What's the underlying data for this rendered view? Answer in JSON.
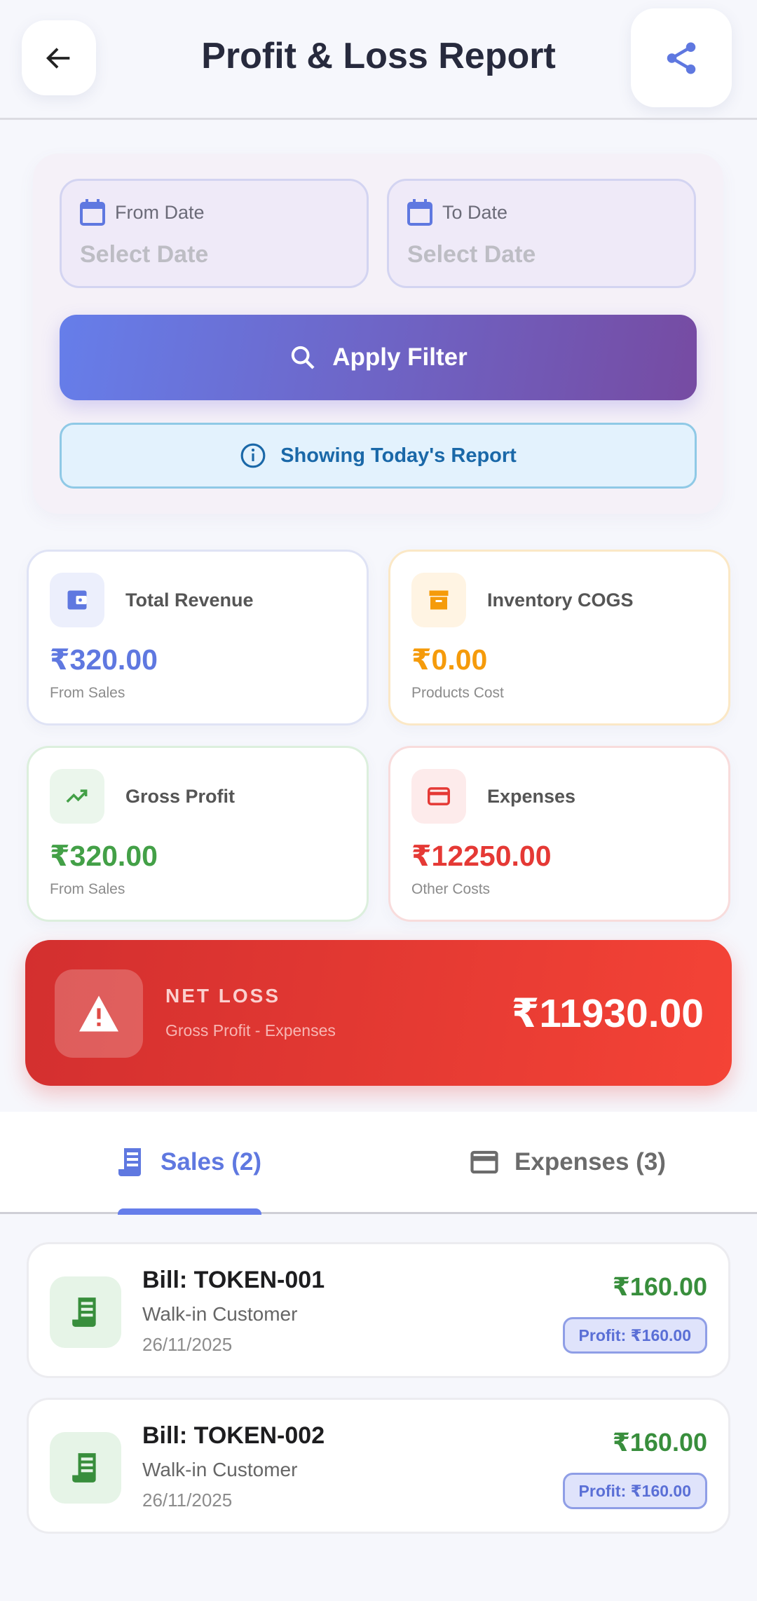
{
  "header": {
    "title": "Profit & Loss Report",
    "back_icon": "arrow-left-icon",
    "share_icon": "share-icon"
  },
  "filter": {
    "from": {
      "label": "From Date",
      "value": "Select Date"
    },
    "to": {
      "label": "To Date",
      "value": "Select Date"
    },
    "apply_label": "Apply Filter",
    "info": "Showing Today's Report"
  },
  "stats": [
    {
      "label": "Total Revenue",
      "value": "₹320.00",
      "sub": "From Sales",
      "color": "#5f78e0",
      "icon": "wallet-icon"
    },
    {
      "label": "Inventory COGS",
      "value": "₹0.00",
      "sub": "Products Cost",
      "color": "#f59b0b",
      "icon": "archive-box-icon"
    },
    {
      "label": "Gross Profit",
      "value": "₹320.00",
      "sub": "From Sales",
      "color": "#43a047",
      "icon": "trending-up-icon"
    },
    {
      "label": "Expenses",
      "value": "₹12250.00",
      "sub": "Other Costs",
      "color": "#e53935",
      "icon": "credit-card-icon"
    }
  ],
  "net": {
    "label": "NET LOSS",
    "sub": "Gross Profit - Expenses",
    "value": "₹11930.00",
    "icon": "warning-icon"
  },
  "tabs": [
    {
      "label": "Sales (2)",
      "active": true,
      "icon": "receipt-icon"
    },
    {
      "label": "Expenses (3)",
      "active": false,
      "icon": "credit-card-icon"
    }
  ],
  "sales": [
    {
      "title": "Bill: TOKEN-001",
      "customer": "Walk-in Customer",
      "date": "26/11/2025",
      "amount": "₹160.00",
      "profit": "Profit: ₹160.00"
    },
    {
      "title": "Bill: TOKEN-002",
      "customer": "Walk-in Customer",
      "date": "26/11/2025",
      "amount": "₹160.00",
      "profit": "Profit: ₹160.00"
    }
  ]
}
